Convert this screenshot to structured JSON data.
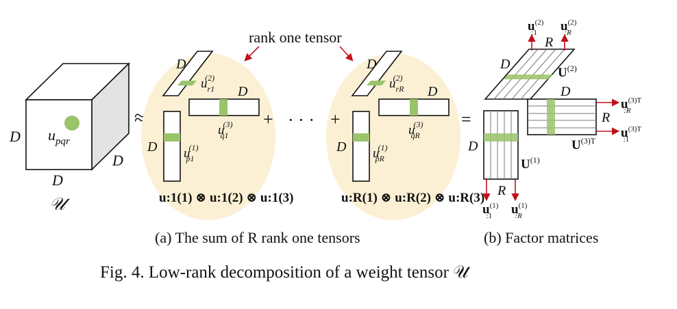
{
  "figure": {
    "caption": "Fig. 4.  Low-rank decomposition of a weight tensor 𝒰",
    "subcaption_a": "(a) The sum of R rank one tensors",
    "subcaption_b": "(b) Factor matrices"
  },
  "cube": {
    "label_D_left": "D",
    "label_D_bottom": "D",
    "label_D_right": "D",
    "element": "u",
    "element_sub": "pqr",
    "symbol": "𝒰"
  },
  "approx_symbol": "≈",
  "plus": "+",
  "dots": "· · ·",
  "equals": "=",
  "rank_one_label": "rank one tensor",
  "term1": {
    "D_top": "D",
    "D_right": "D",
    "D_left": "D",
    "u_r": "u",
    "u_r_sub": "r1",
    "u_r_sup": "(2)",
    "u_q": "u",
    "u_q_sub": "q1",
    "u_q_sup": "(3)",
    "u_p": "u",
    "u_p_sub": "p1",
    "u_p_sup": "(1)",
    "kron": "u:1(1) ⊗ u:1(2) ⊗ u:1(3)"
  },
  "termR": {
    "D_top": "D",
    "D_right": "D",
    "D_left": "D",
    "u_r": "u",
    "u_r_sub": "rR",
    "u_r_sup": "(2)",
    "u_q": "u",
    "u_q_sub": "qR",
    "u_q_sup": "(3)",
    "u_p": "u",
    "u_p_sub": "pR",
    "u_p_sup": "(1)",
    "kron": "u:R(1) ⊗ u:R(2) ⊗ u:R(3)"
  },
  "factors": {
    "U1": "U",
    "U1_sup": "(1)",
    "U2": "U",
    "U2_sup": "(2)",
    "U3T": "U",
    "U3T_sup": "(3)T",
    "D_left": "D",
    "D_top": "D",
    "D_right": "D",
    "R_top": "R",
    "R_bottom": "R",
    "R_right": "R",
    "u2_1": "u",
    "u2_1_sub": ":1",
    "u2_1_sup": "(2)",
    "u2_R": "u",
    "u2_R_sub": ":R",
    "u2_R_sup": "(2)",
    "u1_1": "u",
    "u1_1_sub": ":1",
    "u1_1_sup": "(1)",
    "u1_R": "u",
    "u1_R_sub": ":R",
    "u1_R_sup": "(1)",
    "u3_R": "u",
    "u3_R_sub": ":R",
    "u3_R_sup": "(3)T",
    "u3_1": "u",
    "u3_1_sub": ":1",
    "u3_1_sup": "(3)T"
  },
  "colors": {
    "highlight": "#9ac36a",
    "ellipse": "#fbf0d4",
    "arrow": "#c0101a"
  }
}
